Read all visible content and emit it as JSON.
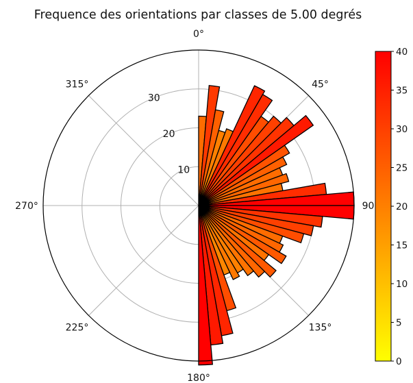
{
  "chart_data": {
    "type": "polar-bar",
    "title": "Frequence des orientations par classes de 5.00 degrés",
    "bin_width_deg": 5,
    "direction": "clockwise",
    "zero_location": "N",
    "radial_range": [
      0,
      40
    ],
    "radial_ticks": [
      10,
      20,
      30
    ],
    "radial_tick_labels": [
      "10",
      "20",
      "30"
    ],
    "angle_labels": [
      "0°",
      "45°",
      "90°",
      "135°",
      "180°",
      "225°",
      "270°",
      "315°"
    ],
    "grid": true,
    "colormap": "autumn_r",
    "colorbar": {
      "range": [
        0,
        40
      ],
      "ticks": [
        0,
        5,
        10,
        15,
        20,
        25,
        30,
        35,
        40
      ],
      "tick_labels": [
        "0",
        "5",
        "10",
        "15",
        "20",
        "25",
        "30",
        "35",
        "40"
      ]
    },
    "bins_start_deg": [
      0,
      5,
      10,
      15,
      20,
      25,
      30,
      35,
      40,
      45,
      50,
      55,
      60,
      65,
      70,
      75,
      80,
      85,
      90,
      95,
      100,
      105,
      110,
      115,
      120,
      125,
      130,
      135,
      140,
      145,
      150,
      155,
      160,
      165,
      170,
      175
    ],
    "values": [
      23,
      31,
      25,
      20,
      21,
      34,
      33,
      28,
      30,
      32,
      36,
      27,
      25,
      23,
      24,
      22,
      33,
      40,
      40,
      32,
      30,
      28,
      23,
      24,
      26,
      22,
      26,
      24,
      22,
      20,
      21,
      19,
      28,
      34,
      36,
      41
    ]
  }
}
